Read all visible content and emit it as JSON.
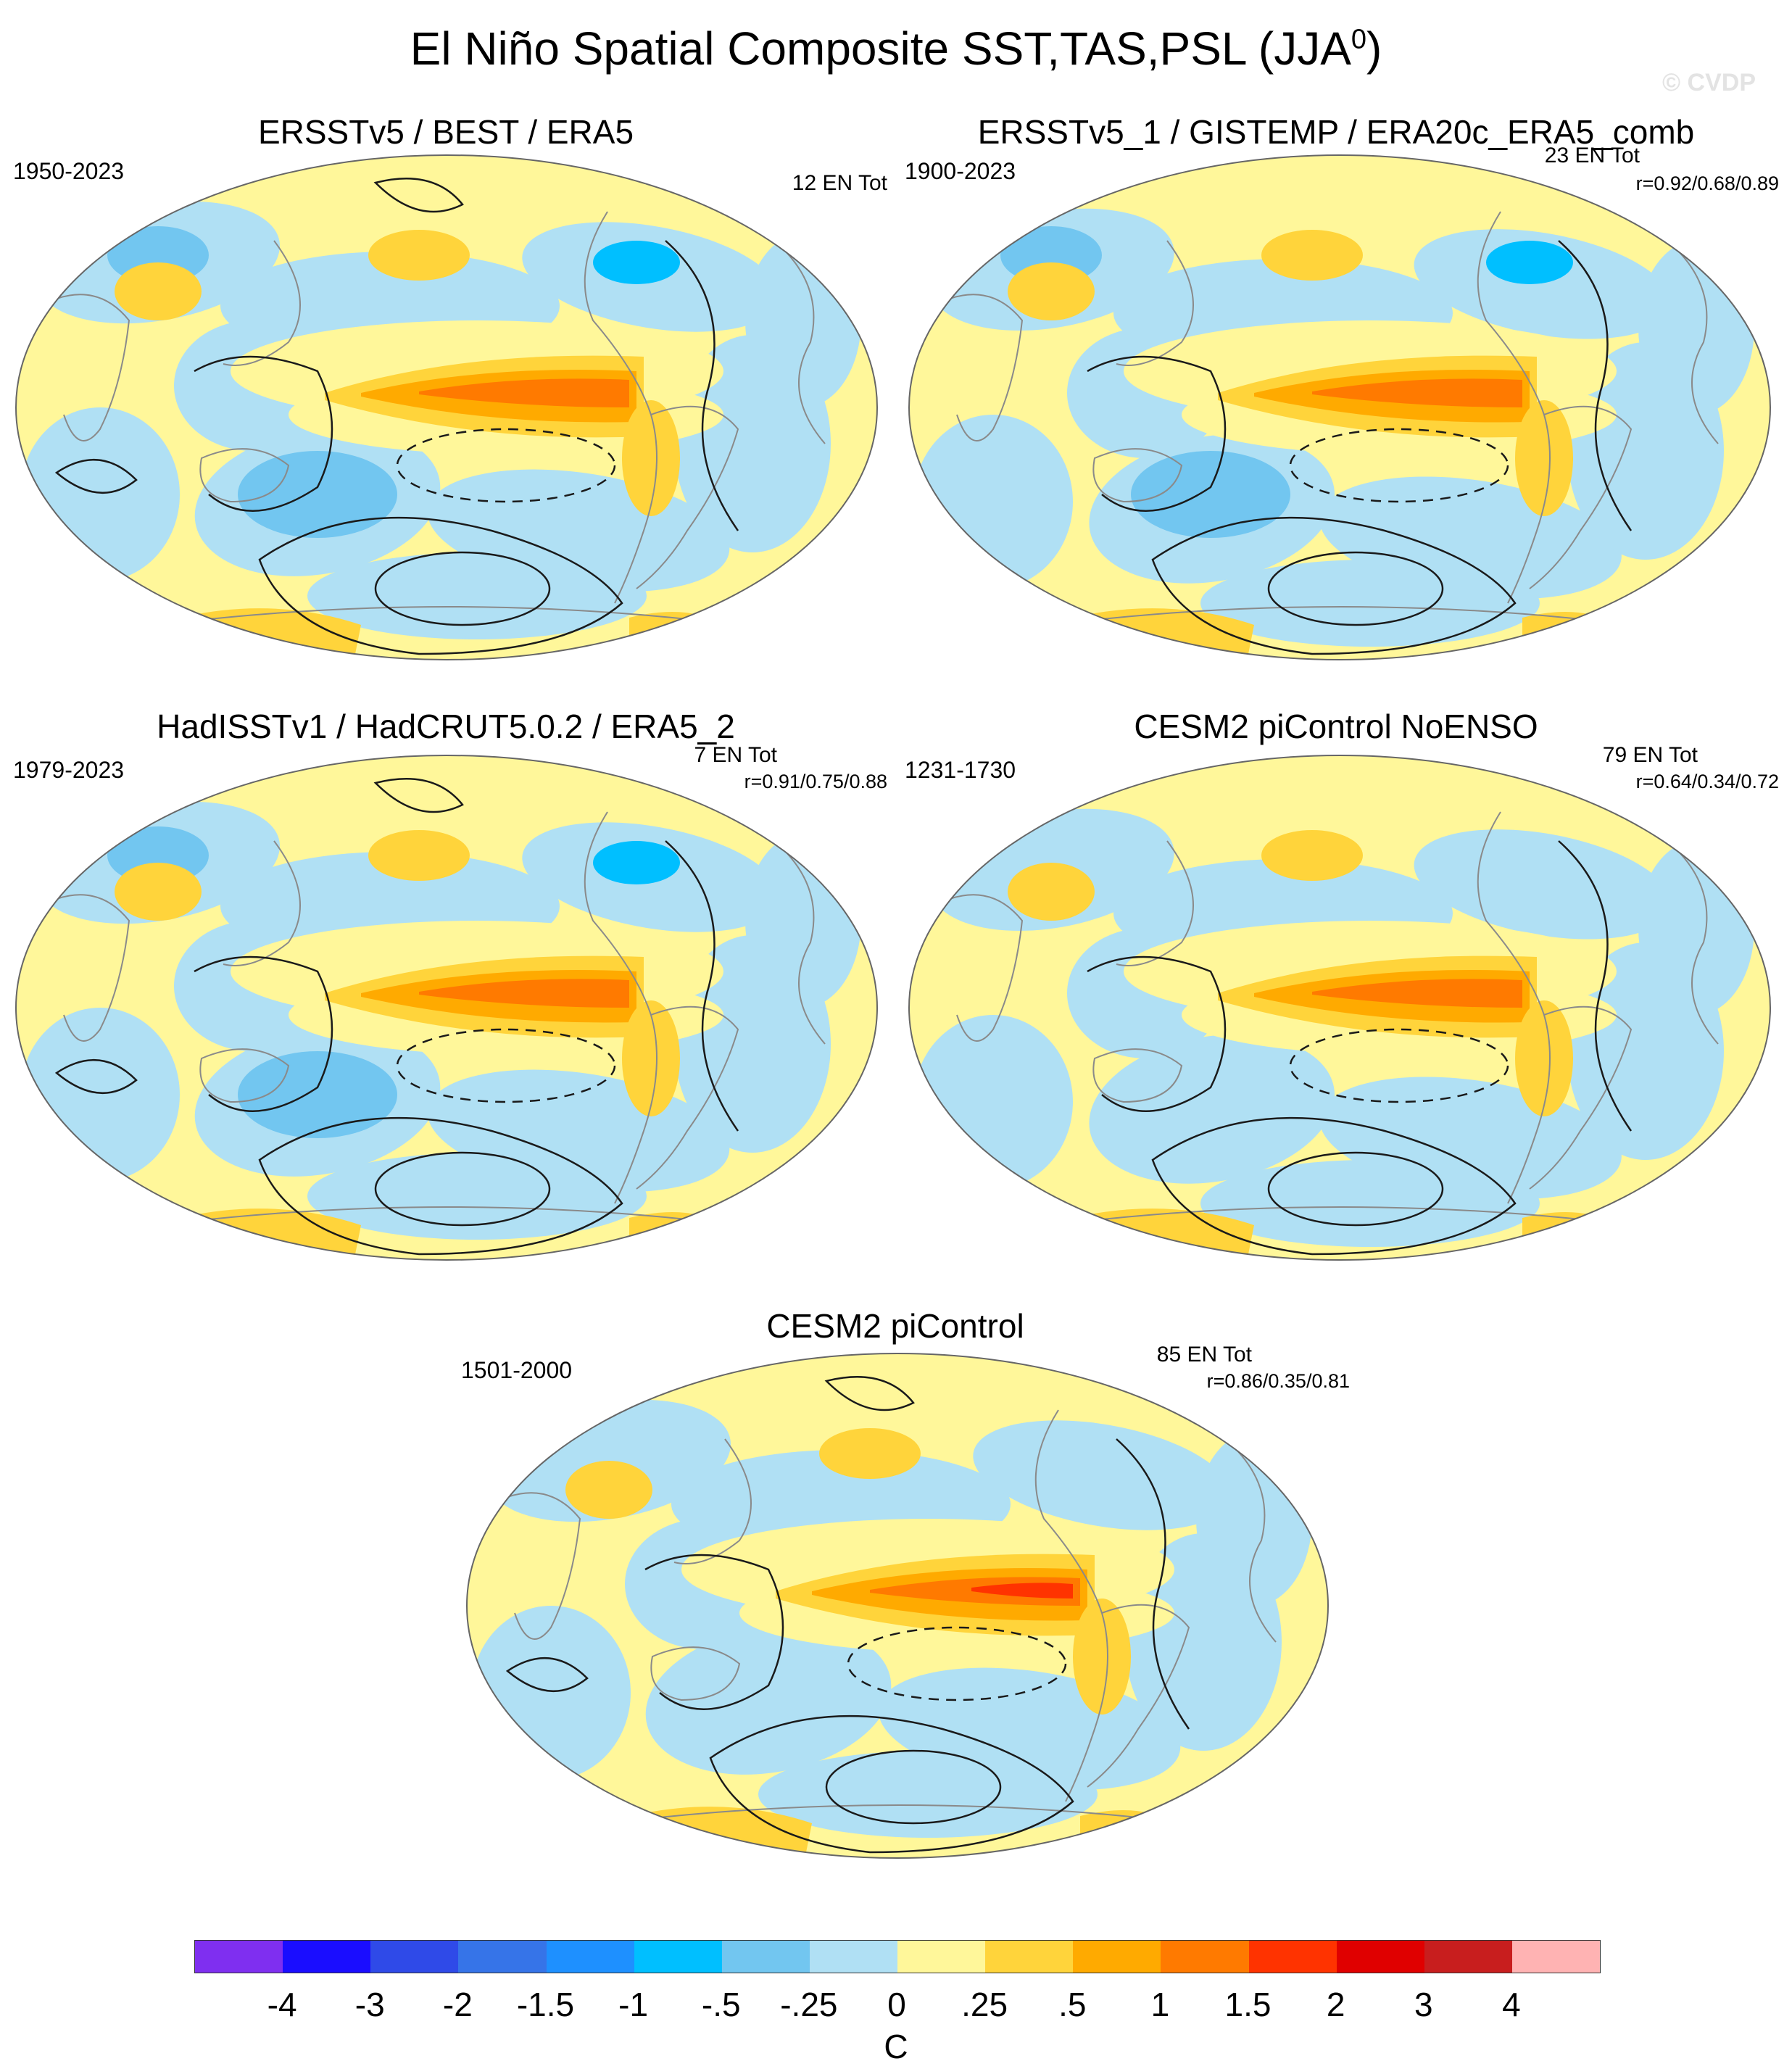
{
  "figure": {
    "title": "El Niño Spatial Composite SST,TAS,PSL (JJA",
    "title_superscript": "0",
    "title_close": ")",
    "watermark": "© CVDP"
  },
  "panels": [
    {
      "title": "ERSSTv5 / BEST / ERA5",
      "period": "1950-2023",
      "count": "12 EN Tot",
      "corr": ""
    },
    {
      "title": "ERSSTv5_1 / GISTEMP / ERA20c_ERA5_comb",
      "period": "1900-2023",
      "count": "23 EN Tot",
      "corr": "r=0.92/0.68/0.89"
    },
    {
      "title": "HadISSTv1 / HadCRUT5.0.2 / ERA5_2",
      "period": "1979-2023",
      "count": "7 EN Tot",
      "corr": "r=0.91/0.75/0.88"
    },
    {
      "title": "CESM2 piControl NoENSO",
      "period": "1231-1730",
      "count": "79 EN Tot",
      "corr": "r=0.64/0.34/0.72"
    },
    {
      "title": "CESM2 piControl",
      "period": "1501-2000",
      "count": "85 EN Tot",
      "corr": "r=0.86/0.35/0.81"
    }
  ],
  "colorbar": {
    "unit": "C",
    "tick_labels": [
      "-4",
      "-3",
      "-2",
      "-1.5",
      "-1",
      "-.5",
      "-.25",
      "0",
      ".25",
      ".5",
      "1",
      "1.5",
      "2",
      "3",
      "4"
    ],
    "colors": [
      "#7f2ff0",
      "#1a0dff",
      "#2f4ae8",
      "#3674e8",
      "#1e90ff",
      "#00bfff",
      "#72c6f0",
      "#b0e0f4",
      "#fff79a",
      "#ffd43b",
      "#ffaa00",
      "#ff7a00",
      "#ff3300",
      "#e00000",
      "#c81e1e",
      "#ffb3b3"
    ]
  }
}
